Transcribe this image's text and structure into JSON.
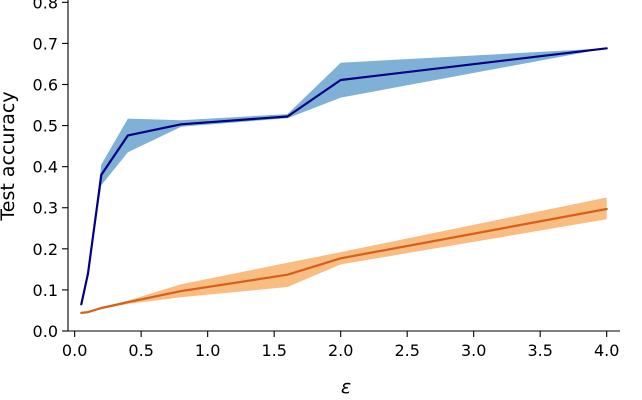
{
  "chart_data": {
    "type": "line",
    "xlabel": "ε",
    "ylabel": "Test accuracy",
    "xlim": [
      -0.05,
      4.1
    ],
    "ylim": [
      0.0,
      0.83
    ],
    "xticks": [
      0.0,
      0.5,
      1.0,
      1.5,
      2.0,
      2.5,
      3.0,
      3.5,
      4.0
    ],
    "xtick_labels": [
      "0.0",
      "0.5",
      "1.0",
      "1.5",
      "2.0",
      "2.5",
      "3.0",
      "3.5",
      "4.0"
    ],
    "yticks": [
      0.0,
      0.1,
      0.2,
      0.3,
      0.4,
      0.5,
      0.6,
      0.7,
      0.8
    ],
    "ytick_labels": [
      "0.0",
      "0.1",
      "0.2",
      "0.3",
      "0.4",
      "0.5",
      "0.6",
      "0.7",
      "0.8"
    ],
    "grid": false,
    "legend": "none",
    "series": [
      {
        "color": "#000080",
        "band_color": "#7fb0d6",
        "points": [
          {
            "x": 0.05,
            "y": 0.065,
            "lo": 0.065,
            "hi": 0.065
          },
          {
            "x": 0.1,
            "y": 0.14,
            "lo": 0.14,
            "hi": 0.14
          },
          {
            "x": 0.2,
            "y": 0.38,
            "lo": 0.355,
            "hi": 0.405
          },
          {
            "x": 0.4,
            "y": 0.476,
            "lo": 0.435,
            "hi": 0.517
          },
          {
            "x": 0.8,
            "y": 0.503,
            "lo": 0.497,
            "hi": 0.513
          },
          {
            "x": 1.6,
            "y": 0.522,
            "lo": 0.518,
            "hi": 0.528
          },
          {
            "x": 2.0,
            "y": 0.611,
            "lo": 0.568,
            "hi": 0.653
          },
          {
            "x": 4.0,
            "y": 0.688,
            "lo": 0.688,
            "hi": 0.688
          }
        ]
      },
      {
        "color": "#d45f1e",
        "band_color": "#f9bd82",
        "points": [
          {
            "x": 0.05,
            "y": 0.044,
            "lo": 0.043,
            "hi": 0.045
          },
          {
            "x": 0.1,
            "y": 0.046,
            "lo": 0.045,
            "hi": 0.047
          },
          {
            "x": 0.2,
            "y": 0.056,
            "lo": 0.053,
            "hi": 0.058
          },
          {
            "x": 0.4,
            "y": 0.07,
            "lo": 0.066,
            "hi": 0.074
          },
          {
            "x": 0.8,
            "y": 0.097,
            "lo": 0.082,
            "hi": 0.114
          },
          {
            "x": 1.6,
            "y": 0.137,
            "lo": 0.107,
            "hi": 0.166
          },
          {
            "x": 2.0,
            "y": 0.177,
            "lo": 0.162,
            "hi": 0.192
          },
          {
            "x": 4.0,
            "y": 0.297,
            "lo": 0.272,
            "hi": 0.325
          }
        ]
      }
    ]
  }
}
